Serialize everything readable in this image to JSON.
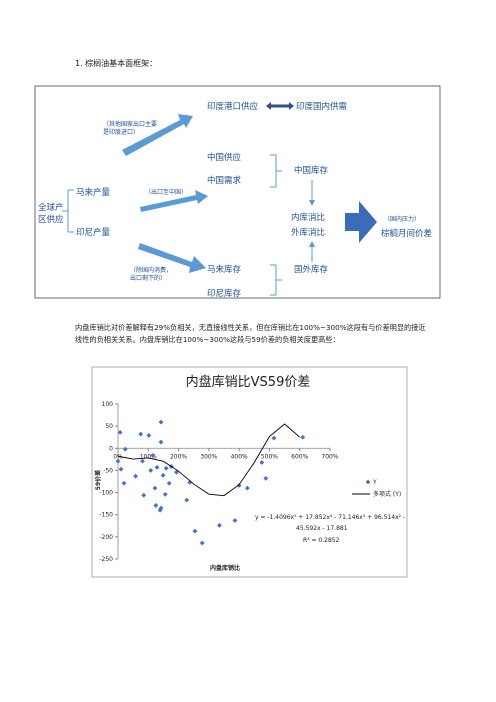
{
  "heading": "1.  棕榈油基本面框架：",
  "diagram": {
    "india_port": "印度港口供应",
    "india_domestic": "印度国内供需",
    "india_note": [
      "（其他国家出口主要",
      "是印度进口）"
    ],
    "china_supply": "中国供应",
    "china_demand": "中国需求",
    "china_stock": "中国库存",
    "global": [
      "全球产",
      "区供应"
    ],
    "malay_output": "马来产量",
    "indo_output": "印尼产量",
    "export_note": "（出口至中国）",
    "inner_ratio": "内库消比",
    "outer_ratio": "外库消比",
    "domestic_note": [
      "（除国内消费，",
      "出口剩下的）"
    ],
    "malay_stock": "马来库存",
    "indo_stock": "印尼库存",
    "foreign_stock": "国外库存",
    "pressure_note": "（国内压力）",
    "spread": "棕榈月间价差"
  },
  "paragraph": "内盘库销比对价差解释有29%负相关，无直接线性关系，但在库销比在100%~300%这段有与价差明显的接近线性的负相关关系。内盘库销比在100%~300%这段与59价差的负相关度更高些：",
  "chart_data": {
    "type": "scatter",
    "title": "内盘库销比VS59价差",
    "x_label": "内盘库销比",
    "y_label": "59价差",
    "annotations": [
      "y = -1.4096x⁵ + 17.852x⁴ - 71.146x³ + 96.514x² -",
      "45.592x - 17.881",
      "R² = 0.2852"
    ],
    "xlim": [
      0,
      700
    ],
    "xticks": [
      {
        "value": 0,
        "label": "0%"
      },
      {
        "value": 100,
        "label": "100%"
      },
      {
        "value": 200,
        "label": "200%"
      },
      {
        "value": 300,
        "label": "300%"
      },
      {
        "value": 400,
        "label": "400%"
      },
      {
        "value": 500,
        "label": "500%"
      },
      {
        "value": 600,
        "label": "600%"
      },
      {
        "value": 700,
        "label": "700%"
      }
    ],
    "ylim": [
      -250,
      100
    ],
    "yticks": [
      100,
      50,
      0,
      -50,
      -100,
      -150,
      -200,
      -250
    ],
    "series": [
      {
        "name": "Y",
        "type": "scatter",
        "color": "#4472c4",
        "x": [
          7,
          0,
          10,
          20,
          24,
          58,
          75,
          81,
          85,
          102,
          108,
          115,
          122,
          125,
          129,
          142,
          142,
          149,
          156,
          159,
          169,
          176,
          193,
          142,
          139,
          237,
          227,
          278,
          254,
          335,
          386,
          400,
          427,
          488,
          475,
          515,
          610
        ],
        "values": [
          36,
          -29,
          -47,
          -79,
          -2,
          -63,
          32,
          -29,
          -106,
          29,
          -50,
          -16,
          -90,
          -129,
          -43,
          59,
          14,
          -61,
          -104,
          -45,
          -79,
          -41,
          -54,
          -135,
          -140,
          -77,
          -117,
          -214,
          -187,
          -174,
          -163,
          -84,
          -90,
          -68,
          -32,
          23,
          25
        ]
      },
      {
        "name": "多项式 (Y)",
        "type": "line",
        "color": "#000000",
        "x": [
          0,
          50,
          100,
          150,
          200,
          250,
          300,
          350,
          400,
          450,
          500,
          550,
          600
        ],
        "values": [
          -17.9,
          -24.4,
          -21.7,
          -29.5,
          -51.7,
          -80.8,
          -103.6,
          -107,
          -82,
          -32,
          26.5,
          54.8,
          25
        ]
      }
    ]
  }
}
